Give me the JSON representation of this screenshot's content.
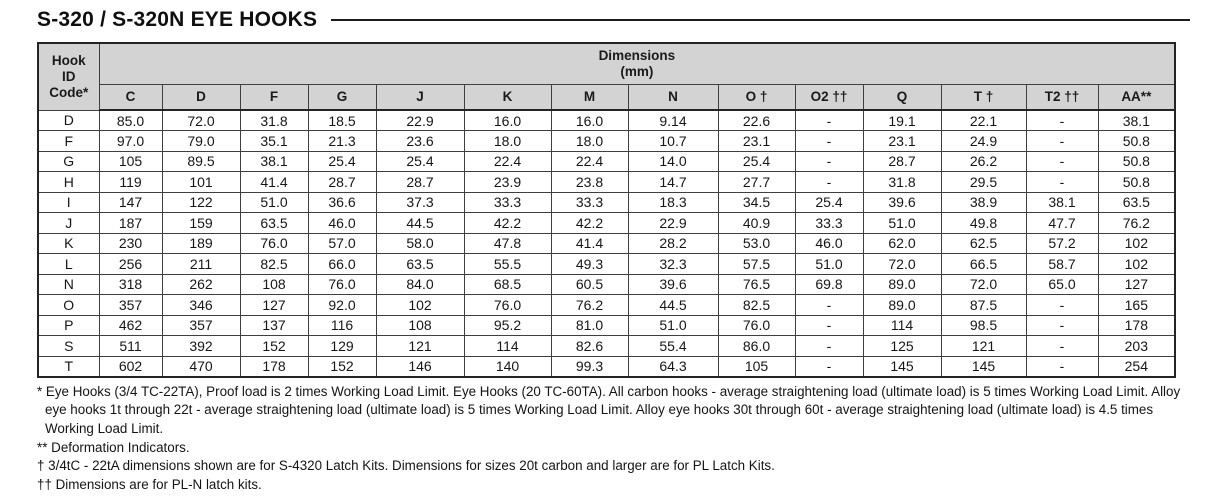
{
  "title": "S-320 / S-320N EYE HOOKS",
  "table": {
    "corner_header": "Hook\nID\nCode*",
    "group_header": "Dimensions\n(mm)",
    "columns": [
      "C",
      "D",
      "F",
      "G",
      "J",
      "K",
      "M",
      "N",
      "O †",
      "O2 ††",
      "Q",
      "T †",
      "T2 ††",
      "AA**"
    ],
    "rows": [
      {
        "code": "D",
        "values": [
          "85.0",
          "72.0",
          "31.8",
          "18.5",
          "22.9",
          "16.0",
          "16.0",
          "9.14",
          "22.6",
          "-",
          "19.1",
          "22.1",
          "-",
          "38.1"
        ]
      },
      {
        "code": "F",
        "values": [
          "97.0",
          "79.0",
          "35.1",
          "21.3",
          "23.6",
          "18.0",
          "18.0",
          "10.7",
          "23.1",
          "-",
          "23.1",
          "24.9",
          "-",
          "50.8"
        ]
      },
      {
        "code": "G",
        "values": [
          "105",
          "89.5",
          "38.1",
          "25.4",
          "25.4",
          "22.4",
          "22.4",
          "14.0",
          "25.4",
          "-",
          "28.7",
          "26.2",
          "-",
          "50.8"
        ]
      },
      {
        "code": "H",
        "values": [
          "119",
          "101",
          "41.4",
          "28.7",
          "28.7",
          "23.9",
          "23.8",
          "14.7",
          "27.7",
          "-",
          "31.8",
          "29.5",
          "-",
          "50.8"
        ]
      },
      {
        "code": "I",
        "values": [
          "147",
          "122",
          "51.0",
          "36.6",
          "37.3",
          "33.3",
          "33.3",
          "18.3",
          "34.5",
          "25.4",
          "39.6",
          "38.9",
          "38.1",
          "63.5"
        ]
      },
      {
        "code": "J",
        "values": [
          "187",
          "159",
          "63.5",
          "46.0",
          "44.5",
          "42.2",
          "42.2",
          "22.9",
          "40.9",
          "33.3",
          "51.0",
          "49.8",
          "47.7",
          "76.2"
        ]
      },
      {
        "code": "K",
        "values": [
          "230",
          "189",
          "76.0",
          "57.0",
          "58.0",
          "47.8",
          "41.4",
          "28.2",
          "53.0",
          "46.0",
          "62.0",
          "62.5",
          "57.2",
          "102"
        ]
      },
      {
        "code": "L",
        "values": [
          "256",
          "211",
          "82.5",
          "66.0",
          "63.5",
          "55.5",
          "49.3",
          "32.3",
          "57.5",
          "51.0",
          "72.0",
          "66.5",
          "58.7",
          "102"
        ]
      },
      {
        "code": "N",
        "values": [
          "318",
          "262",
          "108",
          "76.0",
          "84.0",
          "68.5",
          "60.5",
          "39.6",
          "76.5",
          "69.8",
          "89.0",
          "72.0",
          "65.0",
          "127"
        ]
      },
      {
        "code": "O",
        "values": [
          "357",
          "346",
          "127",
          "92.0",
          "102",
          "76.0",
          "76.2",
          "44.5",
          "82.5",
          "-",
          "89.0",
          "87.5",
          "-",
          "165"
        ]
      },
      {
        "code": "P",
        "values": [
          "462",
          "357",
          "137",
          "116",
          "108",
          "95.2",
          "81.0",
          "51.0",
          "76.0",
          "-",
          "114",
          "98.5",
          "-",
          "178"
        ]
      },
      {
        "code": "S",
        "values": [
          "511",
          "392",
          "152",
          "129",
          "121",
          "114",
          "82.6",
          "55.4",
          "86.0",
          "-",
          "125",
          "121",
          "-",
          "203"
        ]
      },
      {
        "code": "T",
        "values": [
          "602",
          "470",
          "178",
          "152",
          "146",
          "140",
          "99.3",
          "64.3",
          "105",
          "-",
          "145",
          "145",
          "-",
          "254"
        ]
      }
    ]
  },
  "footnotes": [
    "* Eye Hooks (3/4 TC-22TA), Proof load is 2 times Working Load Limit. Eye Hooks (20 TC-60TA). All carbon hooks - average straightening load (ultimate load) is 5 times Working Load Limit. Alloy eye hooks 1t through 22t - average straightening load (ultimate load) is 5 times Working Load Limit. Alloy eye hooks 30t through 60t - average straightening load (ultimate load) is 4.5 times Working Load Limit.",
    "** Deformation Indicators.",
    "† 3/4tC - 22tA dimensions shown are for S-4320 Latch Kits.  Dimensions for sizes 20t carbon and larger are for PL Latch Kits.",
    "†† Dimensions are for PL-N latch kits."
  ]
}
